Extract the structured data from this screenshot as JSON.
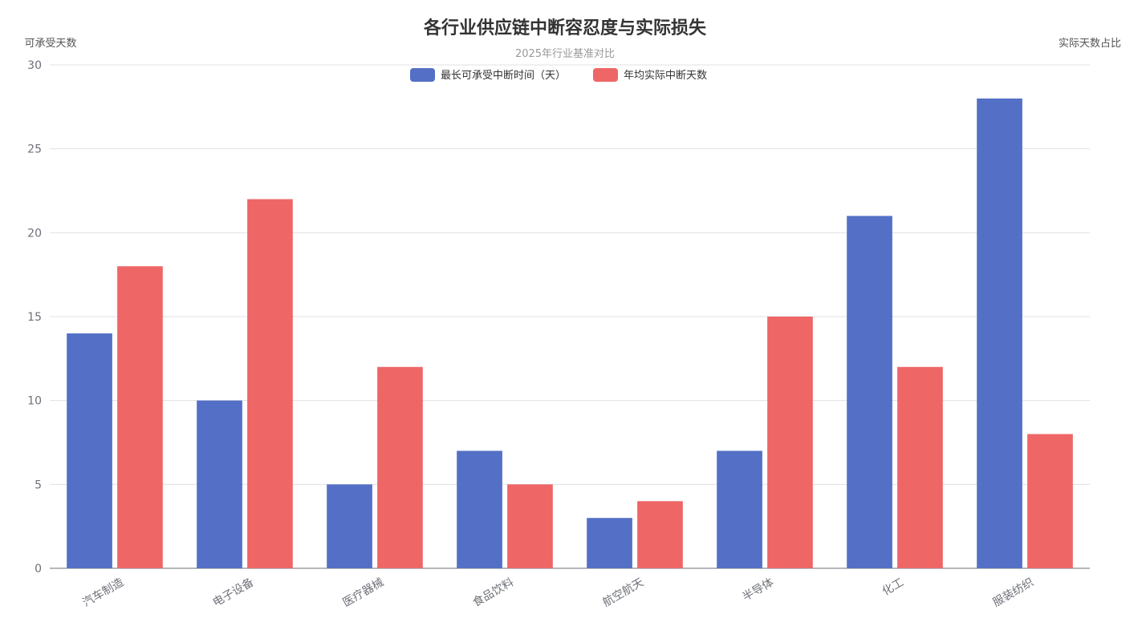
{
  "chart_data": {
    "type": "bar",
    "title": "各行业供应链中断容忍度与实际损失",
    "subtitle": "2025年行业基准对比",
    "ylabel_left": "可承受天数",
    "ylabel_right": "实际天数占比",
    "ylim": [
      0,
      30
    ],
    "yticks": [
      "0",
      "5",
      "10",
      "15",
      "20",
      "25",
      "30"
    ],
    "grid": true,
    "legend_position": "top-center",
    "categories": [
      "汽车制造",
      "电子设备",
      "医疗器械",
      "食品饮料",
      "航空航天",
      "半导体",
      "化工",
      "服装纺织"
    ],
    "series": [
      {
        "name": "最长可承受中断时间（天）",
        "color": "#5470c6",
        "values": [
          14,
          10,
          5,
          7,
          3,
          7,
          21,
          28
        ]
      },
      {
        "name": "年均实际中断天数",
        "color": "#ee6666",
        "values": [
          18,
          22,
          12,
          5,
          4,
          15,
          12,
          8
        ]
      }
    ]
  }
}
